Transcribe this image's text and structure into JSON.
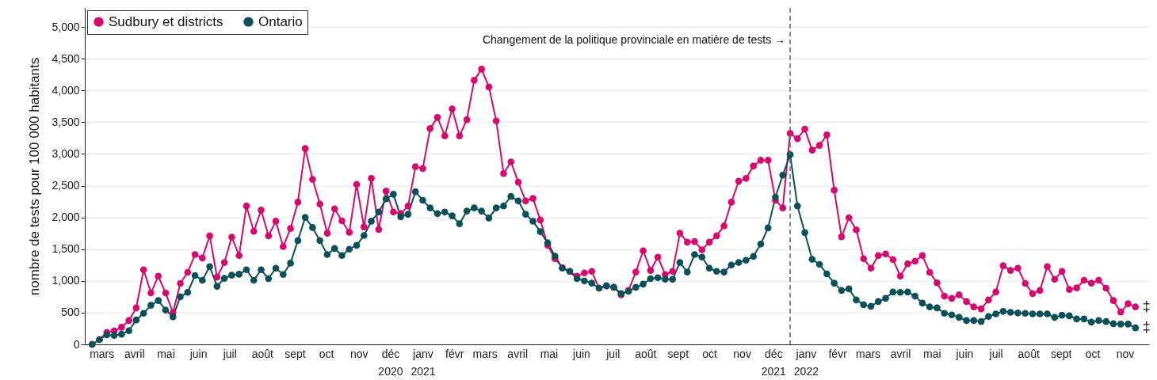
{
  "chart_data": {
    "type": "line",
    "ylabel": "nombre de tests pour 100 000 habitants",
    "x": [
      "2020-03-07",
      "2020-03-14",
      "2020-03-21",
      "2020-03-28",
      "2020-04-04",
      "2020-04-11",
      "2020-04-18",
      "2020-04-25",
      "2020-05-02",
      "2020-05-09",
      "2020-05-16",
      "2020-05-23",
      "2020-05-30",
      "2020-06-06",
      "2020-06-13",
      "2020-06-20",
      "2020-06-27",
      "2020-07-04",
      "2020-07-11",
      "2020-07-18",
      "2020-07-25",
      "2020-08-01",
      "2020-08-08",
      "2020-08-15",
      "2020-08-22",
      "2020-08-29",
      "2020-09-05",
      "2020-09-12",
      "2020-09-19",
      "2020-09-26",
      "2020-10-03",
      "2020-10-10",
      "2020-10-17",
      "2020-10-24",
      "2020-10-31",
      "2020-11-07",
      "2020-11-14",
      "2020-11-21",
      "2020-11-28",
      "2020-12-05",
      "2020-12-12",
      "2020-12-19",
      "2020-12-26",
      "2021-01-02",
      "2021-01-09",
      "2021-01-16",
      "2021-01-23",
      "2021-01-30",
      "2021-02-06",
      "2021-02-13",
      "2021-02-20",
      "2021-02-27",
      "2021-03-06",
      "2021-03-13",
      "2021-03-20",
      "2021-03-27",
      "2021-04-03",
      "2021-04-10",
      "2021-04-17",
      "2021-04-24",
      "2021-05-01",
      "2021-05-08",
      "2021-05-15",
      "2021-05-22",
      "2021-05-29",
      "2021-06-05",
      "2021-06-12",
      "2021-06-19",
      "2021-06-26",
      "2021-07-03",
      "2021-07-10",
      "2021-07-17",
      "2021-07-24",
      "2021-07-31",
      "2021-08-07",
      "2021-08-14",
      "2021-08-21",
      "2021-08-28",
      "2021-09-04",
      "2021-09-11",
      "2021-09-18",
      "2021-09-25",
      "2021-10-02",
      "2021-10-09",
      "2021-10-16",
      "2021-10-23",
      "2021-10-30",
      "2021-11-06",
      "2021-11-13",
      "2021-11-20",
      "2021-11-27",
      "2021-12-04",
      "2021-12-11",
      "2021-12-18",
      "2021-12-25",
      "2022-01-01",
      "2022-01-08",
      "2022-01-15",
      "2022-01-22",
      "2022-01-29",
      "2022-02-05",
      "2022-02-12",
      "2022-02-19",
      "2022-02-26",
      "2022-03-05",
      "2022-03-12",
      "2022-03-19",
      "2022-03-26",
      "2022-04-02",
      "2022-04-09",
      "2022-04-16",
      "2022-04-23",
      "2022-04-30",
      "2022-05-07",
      "2022-05-14",
      "2022-05-21",
      "2022-05-28",
      "2022-06-04",
      "2022-06-11",
      "2022-06-18",
      "2022-06-25",
      "2022-07-02",
      "2022-07-09",
      "2022-07-16",
      "2022-07-23",
      "2022-07-30",
      "2022-08-06",
      "2022-08-13",
      "2022-08-20",
      "2022-08-27",
      "2022-09-03",
      "2022-09-10",
      "2022-09-17",
      "2022-09-24",
      "2022-10-01",
      "2022-10-08",
      "2022-10-15",
      "2022-10-22",
      "2022-10-29",
      "2022-11-05",
      "2022-11-12",
      "2022-11-19",
      "2022-11-26"
    ],
    "series": [
      {
        "name": "Sudbury et districts",
        "color": "#d40a6e",
        "values": [
          0,
          75,
          190,
          210,
          270,
          375,
          575,
          1175,
          810,
          1075,
          810,
          500,
          960,
          1135,
          1415,
          1360,
          1710,
          1060,
          1290,
          1690,
          1400,
          2180,
          1780,
          2115,
          1710,
          1940,
          1540,
          1825,
          2240,
          3085,
          2600,
          2210,
          1750,
          2135,
          1945,
          1765,
          2520,
          1850,
          2615,
          1810,
          2415,
          2085,
          2060,
          2180,
          2800,
          2770,
          3400,
          3575,
          3285,
          3710,
          3285,
          3540,
          4160,
          4335,
          4055,
          3520,
          2690,
          2875,
          2555,
          2260,
          2300,
          1960,
          1560,
          1350,
          1210,
          1150,
          1075,
          1125,
          1150,
          885,
          920,
          900,
          780,
          850,
          1140,
          1475,
          1165,
          1375,
          1100,
          1150,
          1750,
          1610,
          1620,
          1490,
          1610,
          1710,
          1865,
          2240,
          2570,
          2615,
          2810,
          2900,
          2900,
          2270,
          2150,
          3325,
          3240,
          3390,
          3060,
          3135,
          3300,
          2430,
          1695,
          1995,
          1805,
          1350,
          1200,
          1400,
          1425,
          1335,
          1075,
          1270,
          1310,
          1400,
          1135,
          970,
          760,
          725,
          780,
          675,
          590,
          560,
          700,
          825,
          1240,
          1165,
          1200,
          960,
          800,
          850,
          1225,
          1025,
          1150,
          865,
          890,
          1010,
          965,
          1010,
          885,
          690,
          510,
          640,
          590
        ]
      },
      {
        "name": "Ontario",
        "color": "#0b4f57",
        "values": [
          0,
          75,
          150,
          140,
          160,
          215,
          385,
          490,
          615,
          690,
          540,
          435,
          750,
          820,
          1085,
          1010,
          1225,
          915,
          1040,
          1090,
          1105,
          1175,
          1010,
          1175,
          1035,
          1200,
          1100,
          1280,
          1635,
          2000,
          1840,
          1635,
          1415,
          1510,
          1400,
          1500,
          1560,
          1715,
          1940,
          2085,
          2290,
          2365,
          2010,
          2050,
          2405,
          2270,
          2150,
          2060,
          2085,
          2025,
          1900,
          2100,
          2150,
          2100,
          1990,
          2150,
          2180,
          2330,
          2260,
          2050,
          1940,
          1775,
          1600,
          1390,
          1200,
          1150,
          1035,
          1000,
          965,
          885,
          925,
          900,
          800,
          835,
          900,
          950,
          1035,
          1050,
          1025,
          1025,
          1290,
          1140,
          1415,
          1375,
          1200,
          1150,
          1140,
          1250,
          1290,
          1325,
          1385,
          1580,
          1835,
          2320,
          2665,
          2990,
          2180,
          1760,
          1340,
          1260,
          1110,
          965,
          850,
          875,
          700,
          625,
          600,
          675,
          725,
          825,
          820,
          825,
          760,
          650,
          590,
          575,
          490,
          465,
          425,
          375,
          375,
          360,
          440,
          480,
          520,
          505,
          495,
          490,
          480,
          480,
          480,
          425,
          460,
          450,
          400,
          400,
          350,
          375,
          360,
          325,
          320,
          320,
          260
        ]
      }
    ],
    "xlim": [
      "2020-02-29",
      "2022-12-09"
    ],
    "xticks": [
      {
        "value": "2020-03-16",
        "label": "mars"
      },
      {
        "value": "2020-04-16",
        "label": "avril"
      },
      {
        "value": "2020-05-16",
        "label": "mai"
      },
      {
        "value": "2020-06-16",
        "label": "juin"
      },
      {
        "value": "2020-07-16",
        "label": "juil"
      },
      {
        "value": "2020-08-16",
        "label": "août"
      },
      {
        "value": "2020-09-16",
        "label": "sept"
      },
      {
        "value": "2020-10-16",
        "label": "oct"
      },
      {
        "value": "2020-11-16",
        "label": "nov"
      },
      {
        "value": "2020-12-16",
        "label": "déc\n2020"
      },
      {
        "value": "2021-01-16",
        "label": "janv\n2021"
      },
      {
        "value": "2021-02-15",
        "label": "févr"
      },
      {
        "value": "2021-03-16",
        "label": "mars"
      },
      {
        "value": "2021-04-16",
        "label": "avril"
      },
      {
        "value": "2021-05-16",
        "label": "mai"
      },
      {
        "value": "2021-06-16",
        "label": "juin"
      },
      {
        "value": "2021-07-16",
        "label": "juil"
      },
      {
        "value": "2021-08-16",
        "label": "août"
      },
      {
        "value": "2021-09-16",
        "label": "sept"
      },
      {
        "value": "2021-10-16",
        "label": "oct"
      },
      {
        "value": "2021-11-16",
        "label": "nov"
      },
      {
        "value": "2021-12-16",
        "label": "déc\n2021"
      },
      {
        "value": "2022-01-16",
        "label": "janv\n2022"
      },
      {
        "value": "2022-02-15",
        "label": "févr"
      },
      {
        "value": "2022-03-16",
        "label": "mars"
      },
      {
        "value": "2022-04-16",
        "label": "avril"
      },
      {
        "value": "2022-05-16",
        "label": "mai"
      },
      {
        "value": "2022-06-16",
        "label": "juin"
      },
      {
        "value": "2022-07-16",
        "label": "juil"
      },
      {
        "value": "2022-08-16",
        "label": "août"
      },
      {
        "value": "2022-09-16",
        "label": "sept"
      },
      {
        "value": "2022-10-16",
        "label": "oct"
      },
      {
        "value": "2022-11-16",
        "label": "nov"
      }
    ],
    "ylim": [
      0,
      5300
    ],
    "yticks": [
      0,
      500,
      {
        "value": 1000,
        "label": "1,000"
      },
      {
        "value": 1500,
        "label": "1,500"
      },
      {
        "value": 2000,
        "label": "2,000"
      },
      {
        "value": 2500,
        "label": "2,500"
      },
      {
        "value": 3000,
        "label": "3,000"
      },
      {
        "value": 3500,
        "label": "3,500"
      },
      {
        "value": 4000,
        "label": "4,000"
      },
      {
        "value": 4500,
        "label": "4,500"
      },
      {
        "value": 5000,
        "label": "5,000"
      }
    ],
    "grid": "y",
    "legend": "top left",
    "marker": "circle",
    "line_style": "solid",
    "ref_lines": [
      {
        "axis": "x",
        "value": "2022-01-01",
        "label": "Changement de la politique provinciale en matière de tests →",
        "color": "#666666",
        "line_style": "dashed"
      }
    ],
    "annotations": [
      {
        "text": "‡",
        "x": "2022-11-26",
        "y": 590
      },
      {
        "text": "‡",
        "x": "2022-11-26",
        "y": 260
      }
    ]
  }
}
